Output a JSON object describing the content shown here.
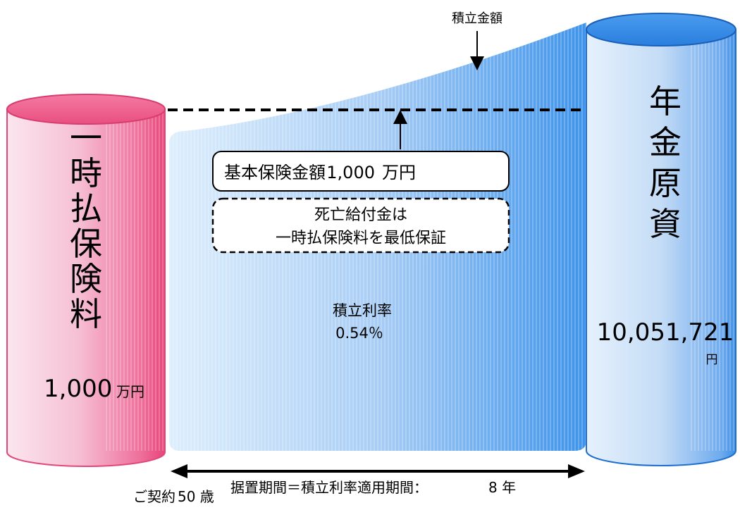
{
  "left_cylinder": {
    "title_chars": [
      "一",
      "時",
      "払",
      "保",
      "険",
      "料"
    ],
    "amount": "1,000",
    "unit": "万円",
    "color": "#e8457a"
  },
  "right_cylinder": {
    "title_chars": [
      "年",
      "金",
      "原",
      "資"
    ],
    "amount": "10,051,721",
    "unit": "円",
    "color": "#1a6fd6"
  },
  "accumulation_label": "積立金額",
  "basic_amount": {
    "label": "基本保険金額",
    "value": "1,000",
    "unit": "万円"
  },
  "death_benefit": {
    "line1": "死亡給付金は",
    "line2": "一時払保険料を最低保証"
  },
  "rate": {
    "label": "積立利率",
    "value": "0.54％"
  },
  "contract_age": {
    "label": "ご契約",
    "value": "50 歳"
  },
  "period": {
    "label": "据置期間＝積立利率適用期間：",
    "value": "8 年"
  }
}
